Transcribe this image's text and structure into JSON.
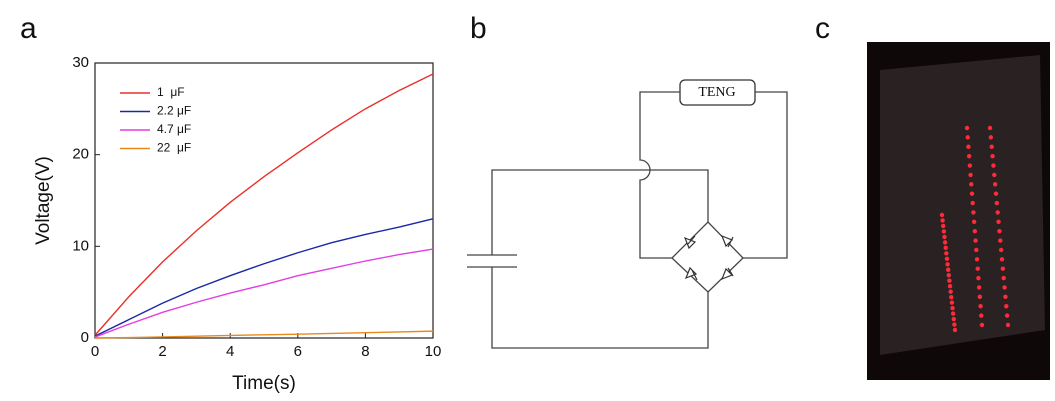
{
  "panels": {
    "a": "a",
    "b": "b",
    "c": "c"
  },
  "diagram": {
    "source_label": "TENG"
  },
  "chart_data": {
    "type": "line",
    "x_label": "Time(s)",
    "y_label": "Voltage(V)",
    "x": [
      0,
      1,
      2,
      3,
      4,
      5,
      6,
      7,
      8,
      9,
      10
    ],
    "series": [
      {
        "name": "1  μF",
        "color": "#e8302a",
        "values": [
          0.3,
          4.5,
          8.3,
          11.7,
          14.8,
          17.6,
          20.2,
          22.7,
          25.0,
          27.0,
          28.8
        ]
      },
      {
        "name": "2.2 μF",
        "color": "#1a27a8",
        "values": [
          0.2,
          2.0,
          3.8,
          5.4,
          6.8,
          8.1,
          9.3,
          10.4,
          11.3,
          12.1,
          13.0
        ]
      },
      {
        "name": "4.7 μF",
        "color": "#e23ee2",
        "values": [
          0.1,
          1.5,
          2.8,
          3.9,
          4.9,
          5.8,
          6.8,
          7.6,
          8.4,
          9.1,
          9.7
        ]
      },
      {
        "name": "22  μF",
        "color": "#e88a1a",
        "values": [
          0.0,
          0.05,
          0.12,
          0.2,
          0.28,
          0.35,
          0.42,
          0.5,
          0.58,
          0.66,
          0.75
        ]
      }
    ],
    "xlim": [
      0,
      10
    ],
    "xticks": [
      0,
      2,
      4,
      6,
      8,
      10
    ],
    "ylim": [
      0,
      30
    ],
    "yticks": [
      0,
      10,
      20,
      30
    ],
    "legend": "upper left"
  }
}
